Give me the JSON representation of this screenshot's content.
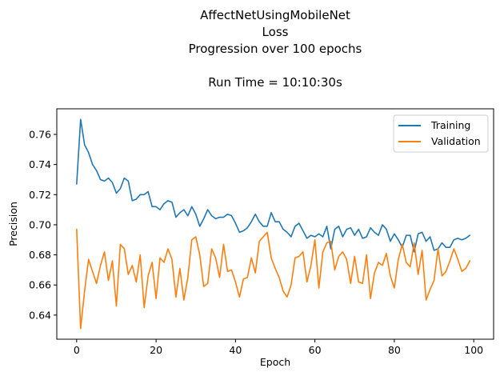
{
  "chart_data": {
    "type": "line",
    "title_lines": [
      "AffectNetUsingMobileNet",
      "Loss",
      "Progression over 100 epochs",
      "",
      "Run Time = 10:10:30s"
    ],
    "xlabel": "Epoch",
    "ylabel": "Precision",
    "xlim": [
      -5,
      105
    ],
    "ylim": [
      0.624,
      0.777
    ],
    "xticks": [
      0,
      20,
      40,
      60,
      80,
      100
    ],
    "xtick_labels": [
      "0",
      "20",
      "40",
      "60",
      "80",
      "100"
    ],
    "yticks": [
      0.64,
      0.66,
      0.68,
      0.7,
      0.72,
      0.74,
      0.76
    ],
    "ytick_labels": [
      "0.64",
      "0.66",
      "0.68",
      "0.70",
      "0.72",
      "0.74",
      "0.76"
    ],
    "grid": false,
    "legend_position": "upper-right",
    "series": [
      {
        "name": "Training",
        "color": "#1f77b4",
        "x": [
          0,
          1,
          2,
          3,
          4,
          5,
          6,
          7,
          8,
          9,
          10,
          11,
          12,
          13,
          14,
          15,
          16,
          17,
          18,
          19,
          20,
          21,
          22,
          23,
          24,
          25,
          26,
          27,
          28,
          29,
          30,
          31,
          32,
          33,
          34,
          35,
          36,
          37,
          38,
          39,
          40,
          41,
          42,
          43,
          44,
          45,
          46,
          47,
          48,
          49,
          50,
          51,
          52,
          53,
          54,
          55,
          56,
          57,
          58,
          59,
          60,
          61,
          62,
          63,
          64,
          65,
          66,
          67,
          68,
          69,
          70,
          71,
          72,
          73,
          74,
          75,
          76,
          77,
          78,
          79,
          80,
          81,
          82,
          83,
          84,
          85,
          86,
          87,
          88,
          89,
          90,
          91,
          92,
          93,
          94,
          95,
          96,
          97,
          98,
          99
        ],
        "values": [
          0.727,
          0.77,
          0.753,
          0.748,
          0.74,
          0.736,
          0.73,
          0.729,
          0.731,
          0.728,
          0.721,
          0.724,
          0.731,
          0.729,
          0.716,
          0.717,
          0.72,
          0.72,
          0.722,
          0.712,
          0.712,
          0.71,
          0.714,
          0.716,
          0.715,
          0.705,
          0.708,
          0.71,
          0.706,
          0.712,
          0.707,
          0.699,
          0.704,
          0.71,
          0.706,
          0.704,
          0.705,
          0.705,
          0.707,
          0.706,
          0.701,
          0.695,
          0.696,
          0.698,
          0.702,
          0.707,
          0.702,
          0.699,
          0.699,
          0.708,
          0.702,
          0.702,
          0.697,
          0.695,
          0.692,
          0.699,
          0.701,
          0.696,
          0.691,
          0.693,
          0.692,
          0.694,
          0.692,
          0.699,
          0.684,
          0.697,
          0.699,
          0.692,
          0.697,
          0.698,
          0.693,
          0.697,
          0.691,
          0.692,
          0.698,
          0.695,
          0.693,
          0.7,
          0.697,
          0.689,
          0.694,
          0.69,
          0.685,
          0.693,
          0.693,
          0.682,
          0.694,
          0.695,
          0.689,
          0.692,
          0.683,
          0.684,
          0.688,
          0.685,
          0.685,
          0.69,
          0.691,
          0.69,
          0.691,
          0.693
        ]
      },
      {
        "name": "Validation",
        "color": "#ff7f0e",
        "x": [
          0,
          1,
          2,
          3,
          4,
          5,
          6,
          7,
          8,
          9,
          10,
          11,
          12,
          13,
          14,
          15,
          16,
          17,
          18,
          19,
          20,
          21,
          22,
          23,
          24,
          25,
          26,
          27,
          28,
          29,
          30,
          31,
          32,
          33,
          34,
          35,
          36,
          37,
          38,
          39,
          40,
          41,
          42,
          43,
          44,
          45,
          46,
          47,
          48,
          49,
          50,
          51,
          52,
          53,
          54,
          55,
          56,
          57,
          58,
          59,
          60,
          61,
          62,
          63,
          64,
          65,
          66,
          67,
          68,
          69,
          70,
          71,
          72,
          73,
          74,
          75,
          76,
          77,
          78,
          79,
          80,
          81,
          82,
          83,
          84,
          85,
          86,
          87,
          88,
          89,
          90,
          91,
          92,
          93,
          94,
          95,
          96,
          97,
          98,
          99
        ],
        "values": [
          0.697,
          0.631,
          0.656,
          0.677,
          0.669,
          0.661,
          0.673,
          0.682,
          0.663,
          0.676,
          0.646,
          0.687,
          0.684,
          0.667,
          0.673,
          0.662,
          0.68,
          0.645,
          0.666,
          0.675,
          0.651,
          0.678,
          0.675,
          0.684,
          0.677,
          0.652,
          0.671,
          0.65,
          0.665,
          0.69,
          0.692,
          0.68,
          0.659,
          0.661,
          0.684,
          0.678,
          0.665,
          0.687,
          0.669,
          0.67,
          0.662,
          0.652,
          0.664,
          0.665,
          0.678,
          0.668,
          0.689,
          0.692,
          0.695,
          0.678,
          0.671,
          0.665,
          0.656,
          0.652,
          0.66,
          0.678,
          0.679,
          0.682,
          0.662,
          0.673,
          0.69,
          0.658,
          0.682,
          0.688,
          0.689,
          0.67,
          0.679,
          0.682,
          0.677,
          0.661,
          0.679,
          0.662,
          0.661,
          0.68,
          0.651,
          0.668,
          0.675,
          0.673,
          0.681,
          0.666,
          0.658,
          0.677,
          0.687,
          0.675,
          0.672,
          0.688,
          0.667,
          0.683,
          0.65,
          0.657,
          0.663,
          0.684,
          0.666,
          0.669,
          0.676,
          0.684,
          0.677,
          0.669,
          0.671,
          0.676
        ]
      }
    ]
  }
}
